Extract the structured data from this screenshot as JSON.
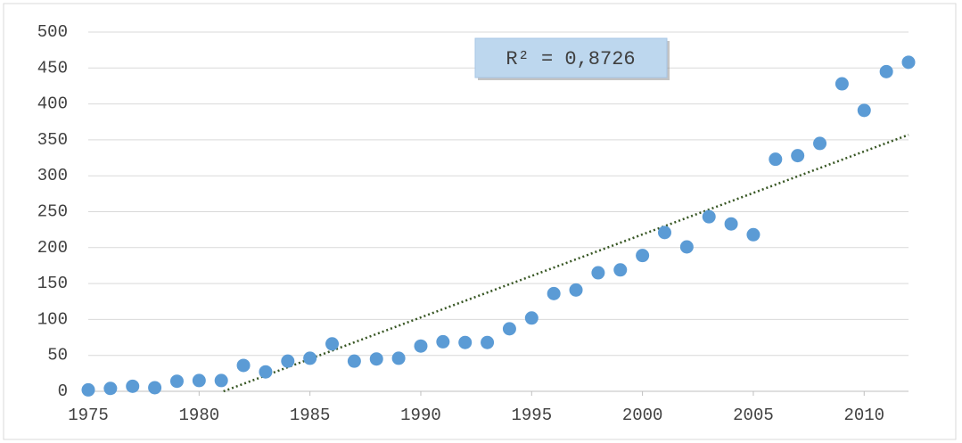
{
  "chart_data": {
    "type": "scatter",
    "annotation": "R² = 0,8726",
    "x": [
      1975,
      1976,
      1977,
      1978,
      1979,
      1980,
      1981,
      1982,
      1983,
      1984,
      1985,
      1986,
      1987,
      1988,
      1989,
      1990,
      1991,
      1992,
      1993,
      1994,
      1995,
      1996,
      1997,
      1998,
      1999,
      2000,
      2001,
      2002,
      2003,
      2004,
      2005,
      2006,
      2007,
      2008,
      2009,
      2010,
      2011,
      2012
    ],
    "series": [
      {
        "color": "#5b9bd5",
        "values": [
          2,
          4,
          7,
          5,
          14,
          15,
          15,
          36,
          27,
          42,
          46,
          66,
          42,
          45,
          46,
          63,
          69,
          68,
          68,
          87,
          102,
          136,
          141,
          165,
          169,
          189,
          221,
          201,
          243,
          233,
          218,
          323,
          328,
          345,
          428,
          391,
          445,
          458
        ]
      }
    ],
    "trendline": {
      "color": "#375623",
      "style": "dotted",
      "x": [
        1981.1,
        2012
      ],
      "values": [
        0,
        357
      ]
    },
    "xlim": [
      1975,
      2012
    ],
    "xticks": [
      1975,
      1980,
      1985,
      1990,
      1995,
      2000,
      2005,
      2010
    ],
    "ylim": [
      0,
      500
    ],
    "yticks": [
      0,
      50,
      100,
      150,
      200,
      250,
      300,
      350,
      400,
      450,
      500
    ],
    "grid": true
  }
}
